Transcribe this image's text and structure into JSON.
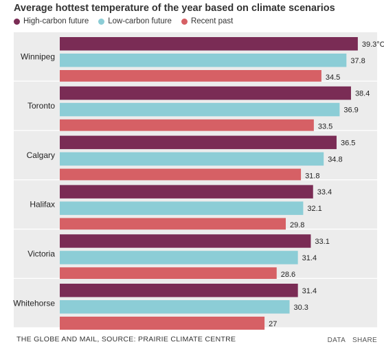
{
  "chart_data": {
    "type": "bar",
    "orientation": "horizontal",
    "title": "Average hottest temperature of the year based on climate scenarios",
    "categories": [
      "Winnipeg",
      "Toronto",
      "Calgary",
      "Halifax",
      "Victoria",
      "Whitehorse"
    ],
    "series": [
      {
        "name": "High-carbon future",
        "color": "#7a2c55",
        "values": [
          39.3,
          38.4,
          36.5,
          33.4,
          33.1,
          31.4
        ]
      },
      {
        "name": "Low-carbon future",
        "color": "#8ccdd6",
        "values": [
          37.8,
          36.9,
          34.8,
          32.1,
          31.4,
          30.3
        ]
      },
      {
        "name": "Recent past",
        "color": "#d66065",
        "values": [
          34.5,
          33.5,
          31.8,
          29.8,
          28.6,
          27
        ]
      }
    ],
    "value_labels": [
      [
        "39.3°C",
        "37.8",
        "34.5"
      ],
      [
        "38.4",
        "36.9",
        "33.5"
      ],
      [
        "36.5",
        "34.8",
        "31.8"
      ],
      [
        "33.4",
        "32.1",
        "29.8"
      ],
      [
        "33.1",
        "31.4",
        "28.6"
      ],
      [
        "31.4",
        "30.3",
        "27"
      ]
    ],
    "legend_position": "top-left",
    "grid": false,
    "group_background": "#ececec"
  },
  "footer": {
    "source": "THE GLOBE AND MAIL, SOURCE: PRAIRIE CLIMATE CENTRE",
    "data_link": "DATA",
    "share_link": "SHARE"
  }
}
